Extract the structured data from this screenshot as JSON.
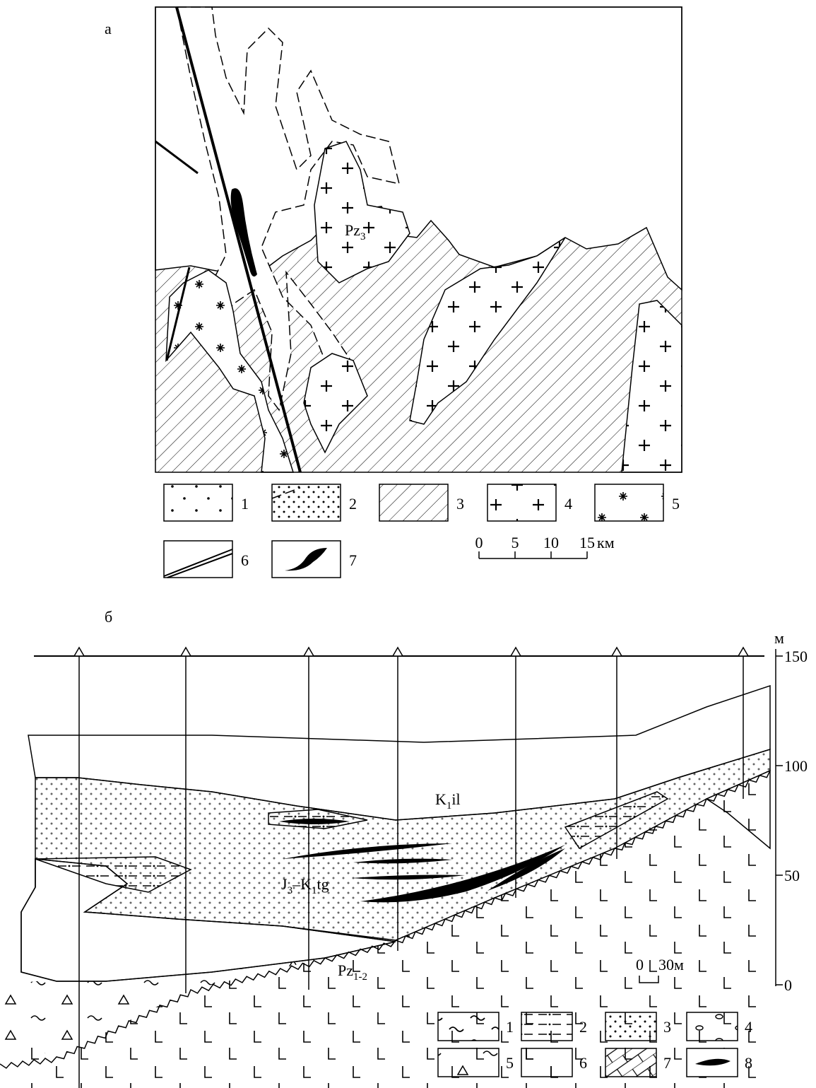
{
  "map": {
    "label": "а",
    "granite_label": [
      "Pz",
      "3"
    ],
    "legend": [
      "1",
      "2",
      "3",
      "4",
      "5",
      "6",
      "7"
    ],
    "scale": {
      "ticks": [
        0,
        5,
        10,
        15
      ],
      "unit": "км"
    }
  },
  "section": {
    "label": "б",
    "depth_axis": {
      "unit": "м",
      "ticks": [
        150,
        100,
        50,
        0
      ]
    },
    "unit_labels": [
      [
        "K",
        "1",
        "il"
      ],
      [
        "J",
        "3",
        "–K",
        "1",
        "tg"
      ],
      [
        "Pz",
        "1-2"
      ]
    ],
    "scale": {
      "ticks": [
        0,
        30
      ],
      "unit": "м"
    },
    "legend": [
      "1",
      "2",
      "3",
      "4",
      "5",
      "6",
      "7",
      "8"
    ]
  }
}
